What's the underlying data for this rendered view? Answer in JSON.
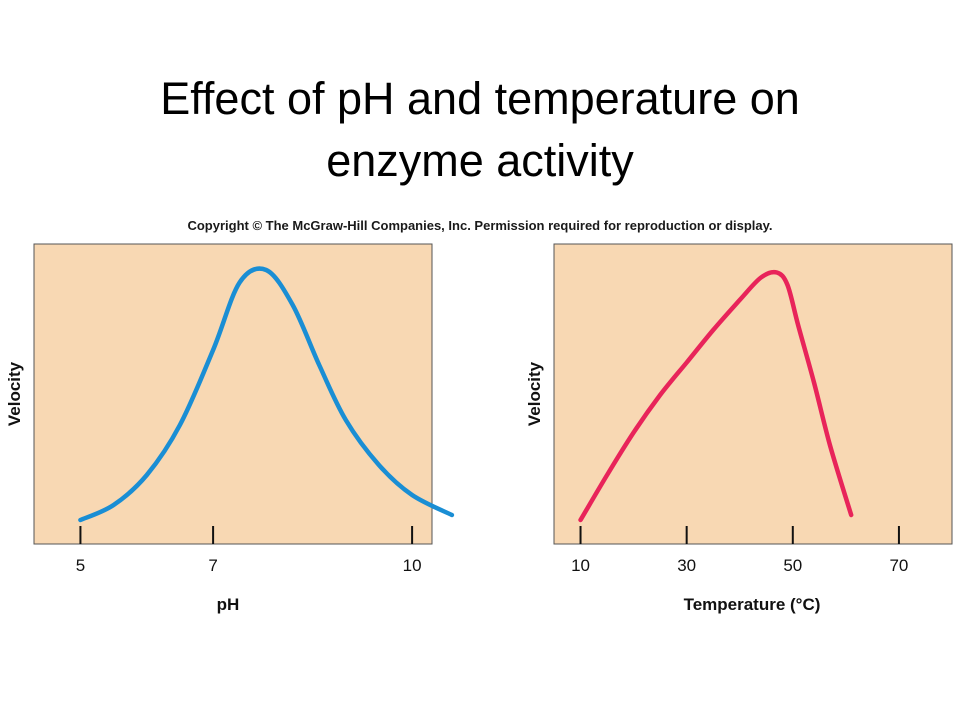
{
  "title": {
    "line1": "Effect of pH and temperature  on",
    "line2": "enzyme activity"
  },
  "copyright": "Copyright © The McGraw-Hill Companies, Inc. Permission required for reproduction or display.",
  "colors": {
    "panel_bg": "#f8d8b3",
    "ph_curve": "#1a8ed4",
    "temp_curve": "#e8245a"
  },
  "chart_data": [
    {
      "type": "line",
      "xlabel": "pH",
      "ylabel": "Velocity",
      "xticks": [
        5,
        7,
        10
      ],
      "xlim": [
        4.3,
        10.3
      ],
      "ylim": [
        0,
        1
      ],
      "grid": false,
      "series": [
        {
          "x": [
            5.0,
            5.5,
            6.0,
            6.5,
            7.0,
            7.4,
            7.8,
            8.2,
            8.6,
            9.0,
            9.5,
            10.0,
            10.6
          ],
          "values": [
            0.0,
            0.06,
            0.18,
            0.38,
            0.68,
            0.95,
            1.0,
            0.86,
            0.62,
            0.4,
            0.22,
            0.1,
            0.02
          ]
        }
      ]
    },
    {
      "type": "line",
      "xlabel": "Temperature (°C)",
      "ylabel": "Velocity",
      "xticks": [
        10,
        30,
        50,
        70
      ],
      "xlim": [
        5,
        80
      ],
      "ylim": [
        0,
        1
      ],
      "grid": false,
      "series": [
        {
          "x": [
            10,
            15,
            20,
            25,
            30,
            35,
            40,
            44,
            47,
            49,
            51,
            54,
            57,
            61
          ],
          "values": [
            0.0,
            0.18,
            0.35,
            0.5,
            0.63,
            0.76,
            0.88,
            0.97,
            0.99,
            0.94,
            0.78,
            0.55,
            0.3,
            0.02
          ]
        }
      ]
    }
  ]
}
